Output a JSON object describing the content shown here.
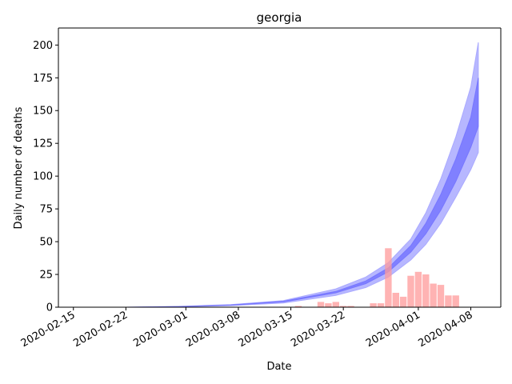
{
  "chart_data": {
    "type": "bar",
    "title": "georgia",
    "xlabel": "Date",
    "ylabel": "Daily number of deaths",
    "ylim": [
      0,
      213
    ],
    "xlim": [
      "2020-02-13",
      "2020-04-12"
    ],
    "y_ticks": [
      0,
      25,
      50,
      75,
      100,
      125,
      150,
      175,
      200
    ],
    "x_ticks": [
      "2020-02-15",
      "2020-02-22",
      "2020-03-01",
      "2020-03-08",
      "2020-03-15",
      "2020-03-22",
      "2020-04-01",
      "2020-04-08"
    ],
    "grid": false,
    "colors": {
      "bars": "#ff9999",
      "band_outer": "#aaaaff",
      "band_inner": "#7777ff"
    },
    "bars": {
      "dates": [
        "2020-02-25",
        "2020-03-10",
        "2020-03-13",
        "2020-03-15",
        "2020-03-16",
        "2020-03-17",
        "2020-03-18",
        "2020-03-19",
        "2020-03-20",
        "2020-03-21",
        "2020-03-22",
        "2020-03-23",
        "2020-03-24",
        "2020-03-25",
        "2020-03-26",
        "2020-03-27",
        "2020-03-28",
        "2020-03-29",
        "2020-03-30",
        "2020-03-31",
        "2020-04-01",
        "2020-04-02",
        "2020-04-03",
        "2020-04-04",
        "2020-04-05",
        "2020-04-06"
      ],
      "values": [
        0,
        0,
        0,
        0,
        1,
        0,
        0,
        4,
        3,
        4,
        1,
        1,
        0,
        0,
        3,
        3,
        45,
        11,
        8,
        24,
        27,
        25,
        18,
        17,
        9,
        9
      ]
    },
    "bands": {
      "dates": [
        "2020-02-22",
        "2020-02-29",
        "2020-03-07",
        "2020-03-14",
        "2020-03-21",
        "2020-03-25",
        "2020-03-28",
        "2020-03-31",
        "2020-04-02",
        "2020-04-04",
        "2020-04-06",
        "2020-04-08",
        "2020-04-09"
      ],
      "outer_lower": [
        0,
        0.3,
        1.2,
        3.2,
        9,
        15,
        23,
        36,
        48,
        64,
        84,
        105,
        118
      ],
      "outer_upper": [
        0,
        0.6,
        2,
        5,
        14,
        23,
        34,
        52,
        72,
        98,
        130,
        168,
        202
      ],
      "inner_lower": [
        0,
        0.4,
        1.5,
        4,
        11,
        18,
        27,
        42,
        56,
        74,
        96,
        122,
        138
      ],
      "inner_upper": [
        0,
        0.5,
        1.7,
        4.5,
        12,
        20,
        30,
        47,
        64,
        86,
        113,
        145,
        175
      ]
    }
  }
}
